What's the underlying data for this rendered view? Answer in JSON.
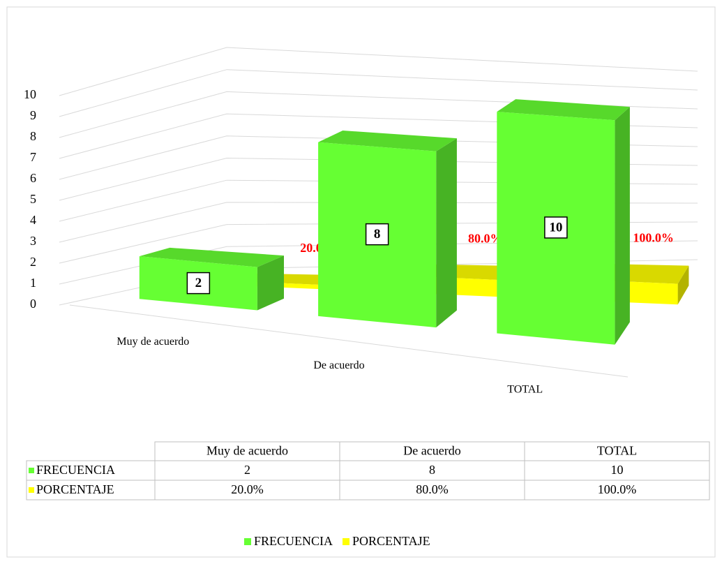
{
  "chart_data": {
    "type": "bar3d",
    "categories": [
      "Muy de acuerdo",
      "De acuerdo",
      "TOTAL"
    ],
    "series": [
      {
        "name": "FRECUENCIA",
        "color": "#66ff33",
        "values": [
          2,
          8,
          10
        ]
      },
      {
        "name": "PORCENTAJE",
        "color": "#ffff00",
        "values": [
          0.2,
          0.8,
          1.0
        ],
        "value_labels": [
          "20.0%",
          "80.0%",
          "100.0%"
        ]
      }
    ],
    "ylim": [
      0,
      10
    ],
    "yticks": [
      0,
      1,
      2,
      3,
      4,
      5,
      6,
      7,
      8,
      9,
      10
    ],
    "grid": true,
    "data_table": true,
    "legend": "bottom"
  }
}
